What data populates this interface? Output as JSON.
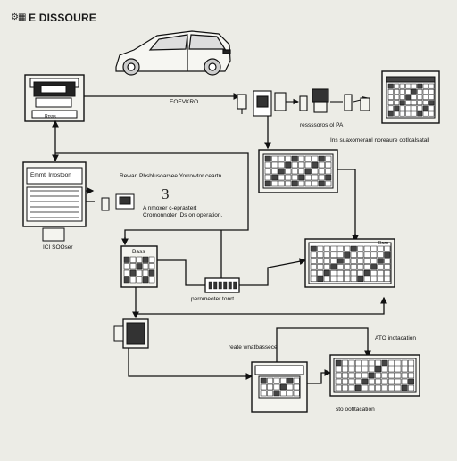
{
  "header": {
    "title": "E DISSOURE",
    "title_icon": "gear-chip-icon"
  },
  "labels": {
    "car_link": "EOEVKRO",
    "scanner_caption": "Rrsss",
    "analyzer_caption": "Emmtl Irrostoon",
    "adapter_caption": "ICI SOOser",
    "top_right_note": "Ins suaxomeranl noreaure optlcalsatall",
    "mid_right_note": "ressssoros ol PA",
    "center_heading": "Rewarl Pbsblusoarsee   Yorrowtor ceartn",
    "center_number": "3",
    "center_desc_1": "A nmoxer c-eprastert",
    "center_desc_2": "Cromonnoter IDs on operation.",
    "connector_note": "pernmeoter tonrt",
    "module_box": "Bass",
    "right_panel_title": "Bass",
    "bottom_note_left": "reate wnatbassece",
    "bottom_note_right": "ATO inotacation",
    "bottom_caption": "sto oofltacation"
  },
  "colors": {
    "background": "#ecece6",
    "line": "#111111",
    "panel": "#f4f4ef",
    "screen": "#d9d9d2"
  }
}
